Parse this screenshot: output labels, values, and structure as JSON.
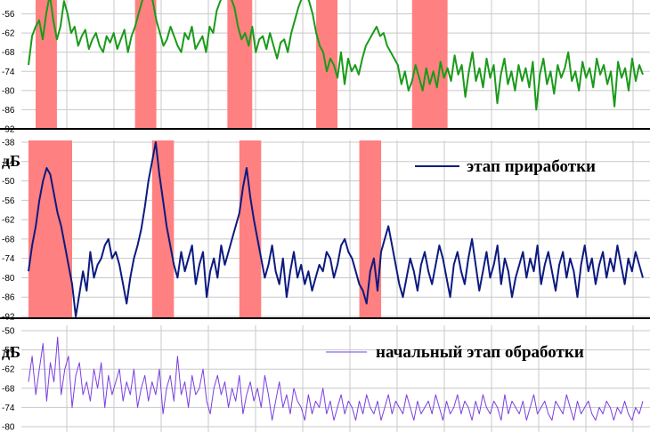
{
  "chart_data": [
    {
      "type": "line",
      "ylim": [
        -92,
        -50
      ],
      "yticks": [
        -92,
        -86,
        -80,
        -74,
        -68,
        -62,
        -56
      ],
      "ylabel": "",
      "series": [
        {
          "color": "#1a9a1a",
          "values": [
            -72,
            -63,
            -60,
            -58,
            -64,
            -56,
            -50,
            -58,
            -64,
            -60,
            -52,
            -56,
            -62,
            -60,
            -66,
            -63,
            -61,
            -67,
            -64,
            -62,
            -66,
            -68,
            -63,
            -65,
            -62,
            -67,
            -64,
            -61,
            -68,
            -63,
            -60,
            -56,
            -52,
            -50,
            -50,
            -52,
            -58,
            -62,
            -66,
            -64,
            -60,
            -63,
            -66,
            -68,
            -62,
            -64,
            -60,
            -67,
            -65,
            -63,
            -68,
            -60,
            -62,
            -55,
            -52,
            -50,
            -50,
            -51,
            -54,
            -60,
            -64,
            -62,
            -66,
            -60,
            -68,
            -64,
            -63,
            -67,
            -62,
            -66,
            -70,
            -65,
            -64,
            -68,
            -62,
            -58,
            -54,
            -51,
            -50,
            -52,
            -56,
            -62,
            -66,
            -68,
            -74,
            -70,
            -72,
            -76,
            -68,
            -78,
            -70,
            -74,
            -72,
            -75,
            -70,
            -66,
            -64,
            -62,
            -60,
            -63,
            -62,
            -66,
            -68,
            -70,
            -72,
            -78,
            -74,
            -80,
            -77,
            -72,
            -76,
            -80,
            -73,
            -78,
            -74,
            -79,
            -71,
            -76,
            -73,
            -77,
            -69,
            -75,
            -72,
            -82,
            -74,
            -68,
            -77,
            -73,
            -79,
            -70,
            -76,
            -72,
            -84,
            -75,
            -70,
            -78,
            -74,
            -80,
            -72,
            -77,
            -73,
            -79,
            -71,
            -86,
            -75,
            -70,
            -78,
            -74,
            -81,
            -72,
            -76,
            -73,
            -68,
            -77,
            -74,
            -80,
            -71,
            -76,
            -73,
            -79,
            -70,
            -75,
            -72,
            -78,
            -74,
            -85,
            -71,
            -76,
            -73,
            -80,
            -70,
            -77,
            -72,
            -75
          ],
          "fills": [
            [
              -91.5,
              -62
            ],
            [
              -85,
              -58
            ],
            [
              -91.5,
              -80
            ],
            [
              -82,
              -78
            ],
            [
              -92,
              -72
            ]
          ]
        }
      ]
    },
    {
      "type": "line",
      "ylim": [
        -92,
        -38
      ],
      "yticks": [
        -92,
        -86,
        -80,
        -74,
        -68,
        -62,
        -56,
        -50,
        -44,
        -38
      ],
      "ylabel": "дБ",
      "series": [
        {
          "name": "этап приработки",
          "color": "#0c1a80",
          "values": [
            -78,
            -70,
            -64,
            -56,
            -50,
            -46,
            -48,
            -54,
            -60,
            -64,
            -70,
            -76,
            -82,
            -92,
            -85,
            -78,
            -84,
            -72,
            -80,
            -76,
            -74,
            -70,
            -68,
            -74,
            -72,
            -76,
            -82,
            -88,
            -80,
            -74,
            -70,
            -65,
            -58,
            -50,
            -44,
            -38,
            -48,
            -56,
            -64,
            -70,
            -76,
            -80,
            -72,
            -78,
            -74,
            -70,
            -82,
            -76,
            -72,
            -86,
            -78,
            -74,
            -80,
            -70,
            -76,
            -72,
            -68,
            -64,
            -60,
            -52,
            -46,
            -55,
            -62,
            -68,
            -74,
            -80,
            -76,
            -70,
            -78,
            -82,
            -74,
            -86,
            -78,
            -72,
            -80,
            -76,
            -82,
            -78,
            -84,
            -80,
            -76,
            -78,
            -72,
            -74,
            -80,
            -76,
            -70,
            -68,
            -72,
            -74,
            -78,
            -82,
            -84,
            -88,
            -78,
            -74,
            -84,
            -72,
            -68,
            -64,
            -70,
            -76,
            -82,
            -86,
            -80,
            -74,
            -78,
            -84,
            -76,
            -72,
            -78,
            -82,
            -76,
            -70,
            -74,
            -80,
            -86,
            -76,
            -72,
            -78,
            -82,
            -74,
            -68,
            -76,
            -84,
            -78,
            -72,
            -80,
            -76,
            -70,
            -82,
            -74,
            -78,
            -86,
            -80,
            -76,
            -72,
            -80,
            -74,
            -78,
            -70,
            -82,
            -76,
            -72,
            -78,
            -84,
            -76,
            -72,
            -80,
            -74,
            -78,
            -86,
            -76,
            -70,
            -78,
            -74,
            -82,
            -76,
            -72,
            -80,
            -74,
            -78,
            -70,
            -76,
            -82,
            -74,
            -78,
            -72,
            -76,
            -80
          ],
          "fills": [
            [
              -92,
              -46
            ],
            [
              -88,
              -40
            ],
            [
              -92,
              -44
            ],
            [
              -89,
              -62
            ]
          ]
        }
      ]
    },
    {
      "type": "line",
      "ylim": [
        -80,
        -50
      ],
      "yticks": [
        -80,
        -74,
        -68,
        -62,
        -56,
        -50
      ],
      "ylabel": "дБ",
      "series": [
        {
          "name": "начальный этап обработки",
          "color": "#7a3fe0",
          "values": [
            -66,
            -58,
            -70,
            -62,
            -54,
            -72,
            -60,
            -66,
            -52,
            -70,
            -62,
            -58,
            -74,
            -64,
            -60,
            -70,
            -66,
            -72,
            -62,
            -68,
            -60,
            -74,
            -64,
            -70,
            -66,
            -62,
            -72,
            -66,
            -70,
            -62,
            -74,
            -68,
            -64,
            -72,
            -66,
            -70,
            -62,
            -76,
            -68,
            -64,
            -72,
            -58,
            -70,
            -66,
            -74,
            -64,
            -70,
            -68,
            -62,
            -72,
            -76,
            -68,
            -64,
            -70,
            -66,
            -74,
            -68,
            -72,
            -64,
            -76,
            -70,
            -66,
            -72,
            -68,
            -74,
            -64,
            -70,
            -78,
            -72,
            -66,
            -74,
            -70,
            -76,
            -68,
            -72,
            -74,
            -78,
            -70,
            -76,
            -72,
            -74,
            -68,
            -76,
            -72,
            -78,
            -74,
            -70,
            -76,
            -72,
            -74,
            -78,
            -72,
            -76,
            -70,
            -74,
            -76,
            -72,
            -78,
            -74,
            -70,
            -76,
            -72,
            -74,
            -76,
            -70,
            -74,
            -78,
            -72,
            -76,
            -74,
            -72,
            -76,
            -70,
            -74,
            -78,
            -72,
            -76,
            -74,
            -70,
            -76,
            -72,
            -74,
            -78,
            -72,
            -76,
            -70,
            -74,
            -76,
            -72,
            -74,
            -78,
            -70,
            -76,
            -72,
            -74,
            -76,
            -72,
            -78,
            -74,
            -70,
            -76,
            -74,
            -72,
            -76,
            -78,
            -72,
            -74,
            -76,
            -70,
            -74,
            -78,
            -72,
            -76,
            -74,
            -72,
            -76,
            -78,
            -74,
            -76,
            -72,
            -74,
            -78,
            -74,
            -76,
            -72,
            -76,
            -78,
            -74,
            -76,
            -72
          ]
        }
      ]
    }
  ],
  "colors": {
    "fill": "#ff8080",
    "grid": "#c8c8c8",
    "axis": "#000000"
  }
}
